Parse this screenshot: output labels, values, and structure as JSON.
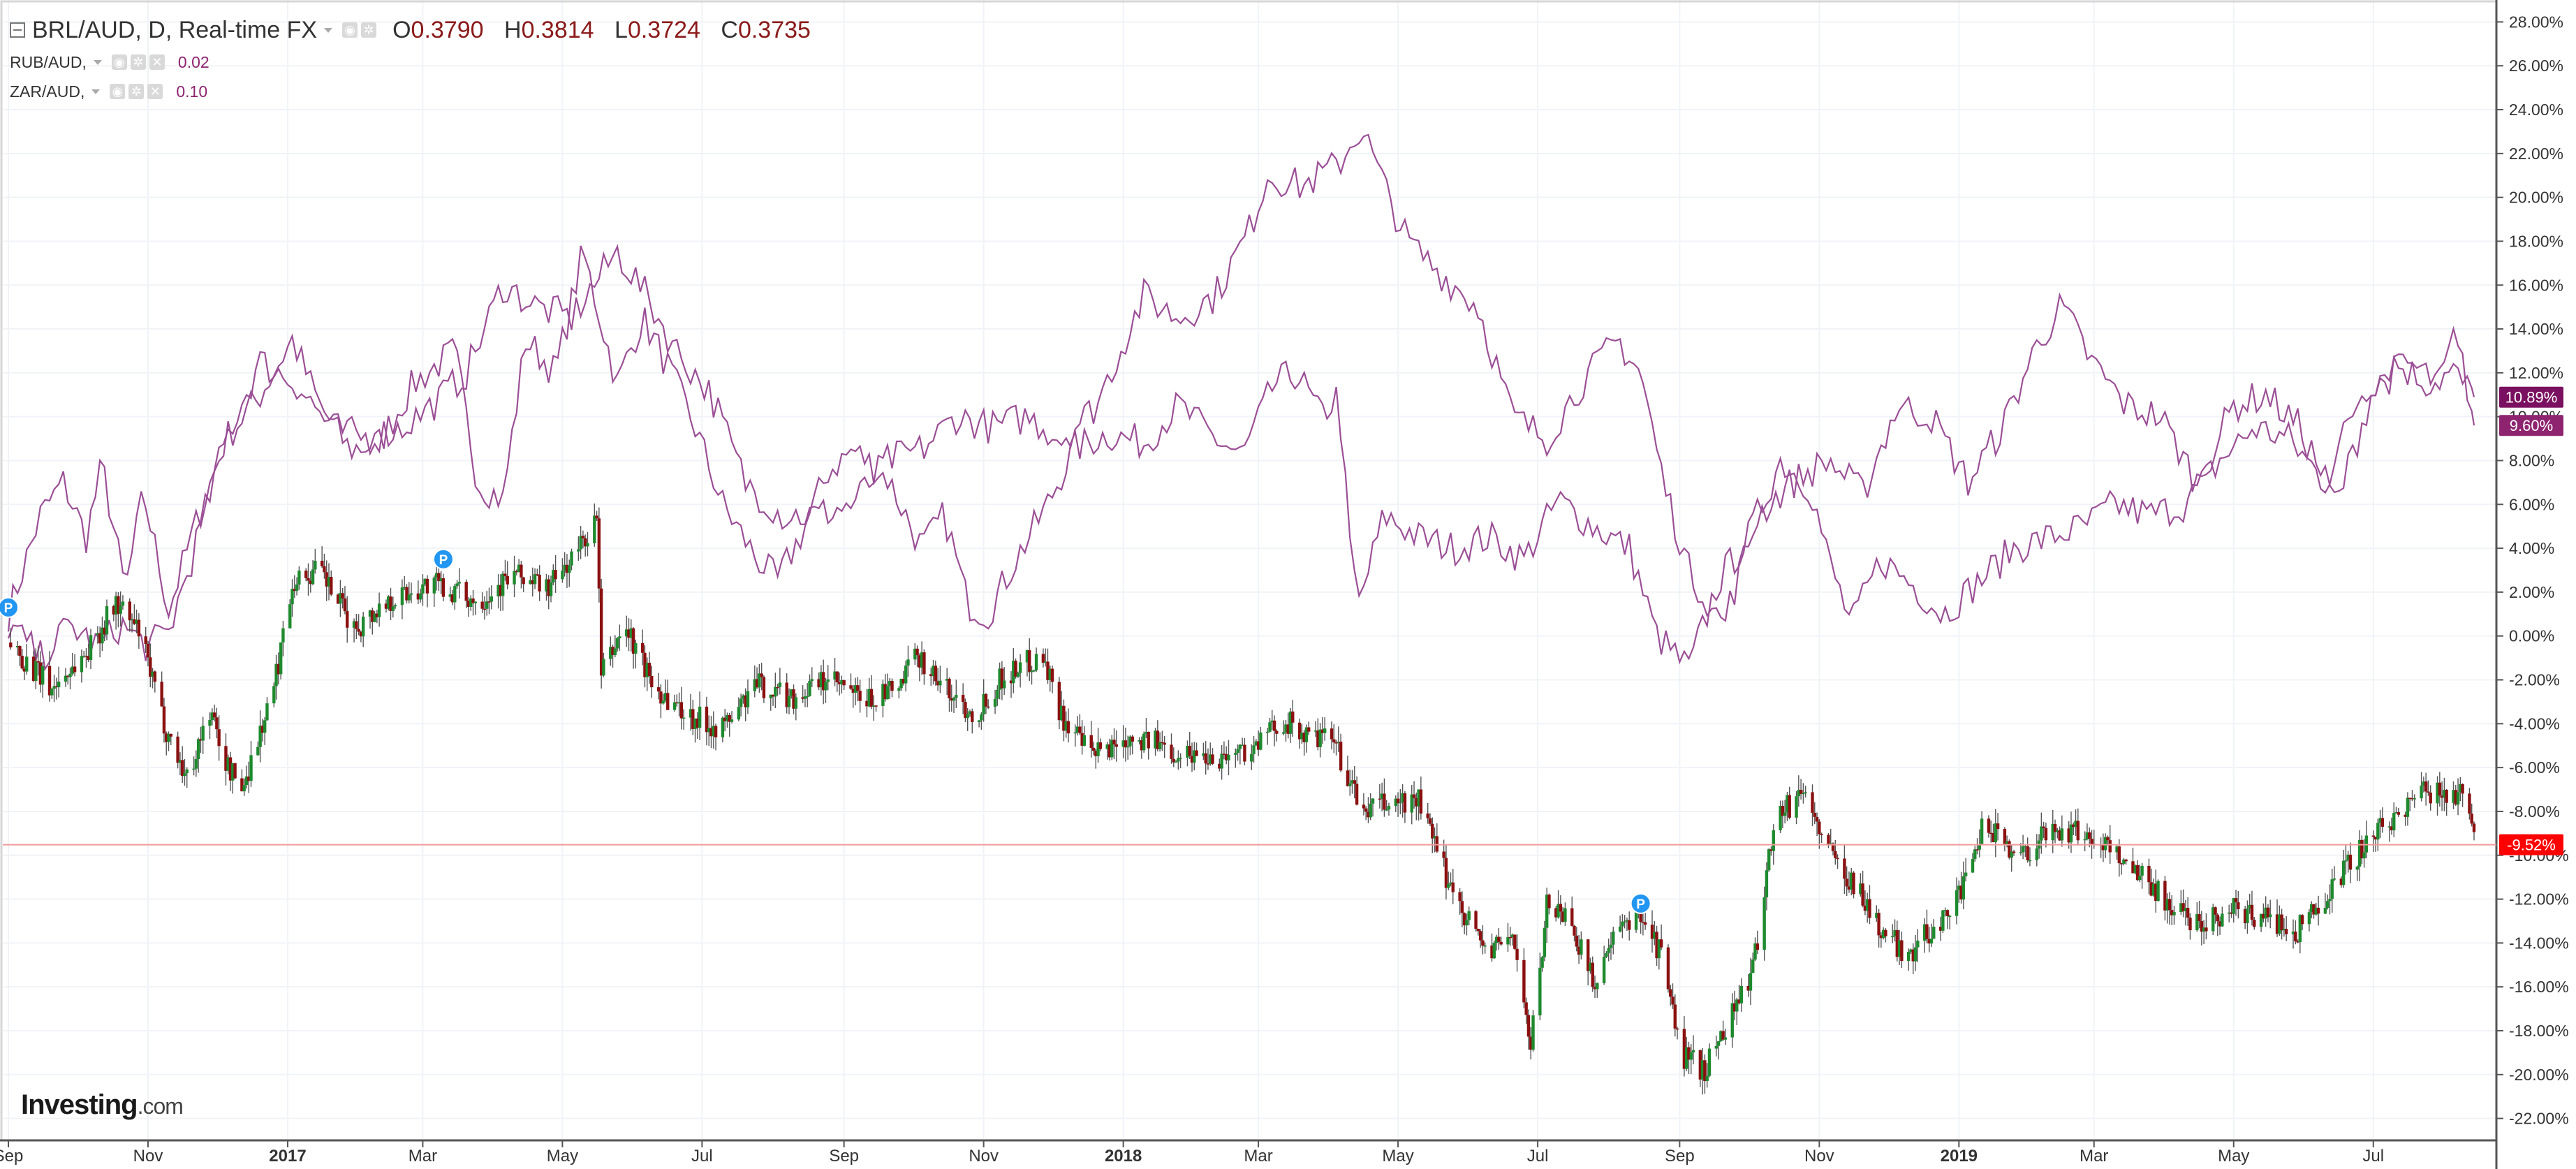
{
  "header": {
    "symbol": "BRL/AUD, D, Real-time FX",
    "ohlc": [
      {
        "k": "O",
        "v": "0.3790"
      },
      {
        "k": "H",
        "v": "0.3814"
      },
      {
        "k": "L",
        "v": "0.3724"
      },
      {
        "k": "C",
        "v": "0.3735"
      }
    ]
  },
  "comparisons": [
    {
      "name": "RUB/AUD,",
      "value": "0.02"
    },
    {
      "name": "ZAR/AUD,",
      "value": "0.10"
    }
  ],
  "logo": {
    "brand": "Investing",
    "suffix": ".com"
  },
  "colors": {
    "up": "#1e8a2e",
    "down": "#8b1010",
    "compare": "#9b4f96",
    "last_price": "#ff0000",
    "rub_badge": "#7a1060",
    "zar_badge": "#8e2470"
  },
  "chart_data": {
    "type": "line",
    "x_tick_labels": [
      "Sep",
      "Nov",
      "2017",
      "Mar",
      "May",
      "Jul",
      "Sep",
      "Nov",
      "2018",
      "Mar",
      "May",
      "Jul",
      "Sep",
      "Nov",
      "2019",
      "Mar",
      "May",
      "Jul"
    ],
    "x_range": [
      "2016-09-01",
      "2019-08-14"
    ],
    "y_tick_labels": [
      "28.00%",
      "26.00%",
      "24.00%",
      "22.00%",
      "20.00%",
      "18.00%",
      "16.00%",
      "14.00%",
      "12.00%",
      "10.00%",
      "8.00%",
      "6.00%",
      "4.00%",
      "2.00%",
      "0.00%",
      "-2.00%",
      "-4.00%",
      "-6.00%",
      "-8.00%",
      "-10.00%",
      "-12.00%",
      "-14.00%",
      "-16.00%",
      "-18.00%",
      "-20.00%",
      "-22.00%"
    ],
    "ylim": [
      -23,
      29
    ],
    "last_value_labels": [
      {
        "series": "RUB/AUD,",
        "label": "10.89%",
        "value": 10.89
      },
      {
        "series": "ZAR/AUD,",
        "label": "9.60%",
        "value": 9.6
      },
      {
        "series": "BRL/AUD, D, Real-time FX",
        "label": "-9.52%",
        "value": -9.52
      }
    ],
    "markers": [
      {
        "label": "P",
        "date": "2016-09-01",
        "value": 1.3
      },
      {
        "label": "P",
        "date": "2017-03-10",
        "value": 3.5
      },
      {
        "label": "P",
        "date": "2018-08-15",
        "value": -12.2
      }
    ],
    "series": [
      {
        "name": "BRL/AUD, D, Real-time FX",
        "style": "candlestick",
        "anchors": [
          [
            "2016-09-01",
            -0.3
          ],
          [
            "2016-09-20",
            -2.4
          ],
          [
            "2016-10-05",
            -0.8
          ],
          [
            "2016-10-18",
            1.5
          ],
          [
            "2016-10-28",
            0.2
          ],
          [
            "2016-11-08",
            -4.0
          ],
          [
            "2016-11-18",
            -6.5
          ],
          [
            "2016-11-28",
            -3.4
          ],
          [
            "2016-12-05",
            -5.8
          ],
          [
            "2016-12-12",
            -7.0
          ],
          [
            "2016-12-26",
            -2.4
          ],
          [
            "2017-01-03",
            2.5
          ],
          [
            "2017-01-15",
            3.0
          ],
          [
            "2017-01-30",
            0.3
          ],
          [
            "2017-02-15",
            1.7
          ],
          [
            "2017-03-05",
            2.4
          ],
          [
            "2017-03-25",
            1.6
          ],
          [
            "2017-04-10",
            2.8
          ],
          [
            "2017-04-25",
            2.2
          ],
          [
            "2017-05-05",
            3.5
          ],
          [
            "2017-05-16",
            5.3
          ],
          [
            "2017-05-18",
            -1.8
          ],
          [
            "2017-05-28",
            0.5
          ],
          [
            "2017-06-10",
            -2.3
          ],
          [
            "2017-06-25",
            -3.6
          ],
          [
            "2017-07-10",
            -4.2
          ],
          [
            "2017-07-25",
            -2.2
          ],
          [
            "2017-08-10",
            -2.8
          ],
          [
            "2017-08-25",
            -2.0
          ],
          [
            "2017-09-10",
            -3.0
          ],
          [
            "2017-09-25",
            -2.4
          ],
          [
            "2017-10-03",
            -0.8
          ],
          [
            "2017-10-15",
            -2.4
          ],
          [
            "2017-10-28",
            -3.6
          ],
          [
            "2017-11-08",
            -2.0
          ],
          [
            "2017-11-18",
            -1.3
          ],
          [
            "2017-11-27",
            -0.9
          ],
          [
            "2017-12-05",
            -3.6
          ],
          [
            "2017-12-18",
            -5.5
          ],
          [
            "2018-01-05",
            -4.5
          ],
          [
            "2018-01-25",
            -5.3
          ],
          [
            "2018-02-12",
            -5.5
          ],
          [
            "2018-02-28",
            -5.0
          ],
          [
            "2018-03-12",
            -3.8
          ],
          [
            "2018-03-22",
            -4.6
          ],
          [
            "2018-04-03",
            -4.8
          ],
          [
            "2018-04-15",
            -8.0
          ],
          [
            "2018-04-25",
            -7.7
          ],
          [
            "2018-05-10",
            -7.5
          ],
          [
            "2018-05-20",
            -10.5
          ],
          [
            "2018-05-30",
            -12.6
          ],
          [
            "2018-06-10",
            -14.5
          ],
          [
            "2018-06-20",
            -13.5
          ],
          [
            "2018-06-28",
            -18.8
          ],
          [
            "2018-07-05",
            -12.2
          ],
          [
            "2018-07-15",
            -12.8
          ],
          [
            "2018-07-25",
            -15.8
          ],
          [
            "2018-08-05",
            -13.6
          ],
          [
            "2018-08-15",
            -12.5
          ],
          [
            "2018-08-25",
            -14.8
          ],
          [
            "2018-09-01",
            -19.0
          ],
          [
            "2018-09-12",
            -19.8
          ],
          [
            "2018-09-22",
            -17.5
          ],
          [
            "2018-10-03",
            -15.3
          ],
          [
            "2018-10-12",
            -8.5
          ],
          [
            "2018-10-25",
            -7.0
          ],
          [
            "2018-11-05",
            -9.8
          ],
          [
            "2018-11-18",
            -11.5
          ],
          [
            "2018-11-28",
            -13.5
          ],
          [
            "2018-12-10",
            -14.5
          ],
          [
            "2018-12-25",
            -12.8
          ],
          [
            "2019-01-05",
            -11.2
          ],
          [
            "2019-01-12",
            -8.5
          ],
          [
            "2019-01-28",
            -10.0
          ],
          [
            "2019-02-10",
            -8.8
          ],
          [
            "2019-02-25",
            -9.0
          ],
          [
            "2019-03-10",
            -9.8
          ],
          [
            "2019-03-25",
            -11.2
          ],
          [
            "2019-04-05",
            -12.5
          ],
          [
            "2019-04-15",
            -13.0
          ],
          [
            "2019-05-01",
            -12.5
          ],
          [
            "2019-05-15",
            -12.8
          ],
          [
            "2019-05-28",
            -13.5
          ],
          [
            "2019-06-10",
            -11.8
          ],
          [
            "2019-06-25",
            -9.8
          ],
          [
            "2019-07-05",
            -8.8
          ],
          [
            "2019-07-20",
            -7.2
          ],
          [
            "2019-08-05",
            -7.0
          ],
          [
            "2019-08-10",
            -7.5
          ],
          [
            "2019-08-14",
            -9.52
          ]
        ]
      },
      {
        "name": "RUB/AUD,",
        "style": "line",
        "anchors": [
          [
            "2016-09-01",
            1.0
          ],
          [
            "2016-09-15",
            5.5
          ],
          [
            "2016-09-25",
            7.0
          ],
          [
            "2016-10-05",
            4.5
          ],
          [
            "2016-10-12",
            7.8
          ],
          [
            "2016-10-22",
            2.0
          ],
          [
            "2016-10-30",
            6.5
          ],
          [
            "2016-11-10",
            1.2
          ],
          [
            "2016-11-20",
            4.5
          ],
          [
            "2016-12-05",
            9.0
          ],
          [
            "2016-12-20",
            11.0
          ],
          [
            "2017-01-03",
            13.5
          ],
          [
            "2017-01-15",
            10.5
          ],
          [
            "2017-01-28",
            8.5
          ],
          [
            "2017-02-10",
            8.8
          ],
          [
            "2017-02-25",
            11.5
          ],
          [
            "2017-03-15",
            13.0
          ],
          [
            "2017-03-25",
            7.0
          ],
          [
            "2017-04-05",
            6.2
          ],
          [
            "2017-04-15",
            13.5
          ],
          [
            "2017-04-28",
            12.0
          ],
          [
            "2017-05-10",
            17.5
          ],
          [
            "2017-05-25",
            11.5
          ],
          [
            "2017-06-05",
            14.5
          ],
          [
            "2017-06-15",
            12.5
          ],
          [
            "2017-06-28",
            9.5
          ],
          [
            "2017-07-10",
            6.0
          ],
          [
            "2017-07-25",
            3.5
          ],
          [
            "2017-08-03",
            2.5
          ],
          [
            "2017-08-15",
            5.0
          ],
          [
            "2017-08-25",
            7.5
          ],
          [
            "2017-09-05",
            8.5
          ],
          [
            "2017-09-20",
            7.2
          ],
          [
            "2017-10-05",
            4.0
          ],
          [
            "2017-10-15",
            5.5
          ],
          [
            "2017-10-25",
            1.5
          ],
          [
            "2017-11-03",
            1.0
          ],
          [
            "2017-11-15",
            3.5
          ],
          [
            "2017-11-28",
            5.8
          ],
          [
            "2017-12-10",
            8.5
          ],
          [
            "2017-12-25",
            9.2
          ],
          [
            "2018-01-10",
            8.8
          ],
          [
            "2018-01-25",
            10.5
          ],
          [
            "2018-02-10",
            9.0
          ],
          [
            "2018-02-22",
            8.2
          ],
          [
            "2018-03-08",
            11.5
          ],
          [
            "2018-03-18",
            12.0
          ],
          [
            "2018-03-28",
            10.0
          ],
          [
            "2018-04-05",
            11.0
          ],
          [
            "2018-04-10",
            4.0
          ],
          [
            "2018-04-14",
            1.5
          ],
          [
            "2018-04-25",
            5.5
          ],
          [
            "2018-05-10",
            4.5
          ],
          [
            "2018-05-25",
            4.0
          ],
          [
            "2018-06-10",
            4.5
          ],
          [
            "2018-06-25",
            3.5
          ],
          [
            "2018-07-10",
            6.2
          ],
          [
            "2018-07-25",
            5.0
          ],
          [
            "2018-08-10",
            4.0
          ],
          [
            "2018-08-22",
            0.0
          ],
          [
            "2018-09-05",
            -1.5
          ],
          [
            "2018-09-18",
            2.5
          ],
          [
            "2018-10-01",
            4.5
          ],
          [
            "2018-10-15",
            8.0
          ],
          [
            "2018-10-28",
            6.8
          ],
          [
            "2018-11-05",
            3.5
          ],
          [
            "2018-11-15",
            0.5
          ],
          [
            "2018-11-28",
            3.5
          ],
          [
            "2018-12-10",
            2.5
          ],
          [
            "2018-12-25",
            1.0
          ],
          [
            "2019-01-10",
            2.5
          ],
          [
            "2019-01-25",
            4.0
          ],
          [
            "2019-02-10",
            4.5
          ],
          [
            "2019-02-25",
            5.0
          ],
          [
            "2019-03-10",
            6.0
          ],
          [
            "2019-03-25",
            5.5
          ],
          [
            "2019-04-10",
            6.0
          ],
          [
            "2019-04-25",
            8.0
          ],
          [
            "2019-05-10",
            9.5
          ],
          [
            "2019-05-25",
            9.0
          ],
          [
            "2019-06-10",
            7.0
          ],
          [
            "2019-06-25",
            11.0
          ],
          [
            "2019-07-10",
            12.5
          ],
          [
            "2019-07-25",
            11.5
          ],
          [
            "2019-08-05",
            12.0
          ],
          [
            "2019-08-14",
            10.89
          ]
        ]
      },
      {
        "name": "ZAR/AUD,",
        "style": "line",
        "anchors": [
          [
            "2016-09-01",
            0.5
          ],
          [
            "2016-09-15",
            -1.0
          ],
          [
            "2016-09-28",
            0.5
          ],
          [
            "2016-10-10",
            -0.5
          ],
          [
            "2016-10-20",
            0.5
          ],
          [
            "2016-11-01",
            -0.5
          ],
          [
            "2016-11-10",
            0.2
          ],
          [
            "2016-11-20",
            3.5
          ],
          [
            "2016-12-05",
            9.0
          ],
          [
            "2016-12-20",
            12.5
          ],
          [
            "2017-01-05",
            11.5
          ],
          [
            "2017-01-20",
            9.5
          ],
          [
            "2017-02-05",
            9.0
          ],
          [
            "2017-02-20",
            9.5
          ],
          [
            "2017-03-05",
            10.5
          ],
          [
            "2017-03-20",
            12.0
          ],
          [
            "2017-04-05",
            16.0
          ],
          [
            "2017-04-20",
            15.0
          ],
          [
            "2017-05-05",
            14.5
          ],
          [
            "2017-05-18",
            16.5
          ],
          [
            "2017-05-25",
            17.5
          ],
          [
            "2017-06-05",
            15.8
          ],
          [
            "2017-06-20",
            13.0
          ],
          [
            "2017-07-05",
            11.0
          ],
          [
            "2017-07-20",
            7.0
          ],
          [
            "2017-08-05",
            5.5
          ],
          [
            "2017-08-20",
            5.5
          ],
          [
            "2017-09-05",
            6.0
          ],
          [
            "2017-09-20",
            8.0
          ],
          [
            "2017-10-05",
            8.5
          ],
          [
            "2017-10-20",
            10.0
          ],
          [
            "2017-11-05",
            9.5
          ],
          [
            "2017-11-20",
            10.0
          ],
          [
            "2017-12-05",
            9.0
          ],
          [
            "2017-12-20",
            10.5
          ],
          [
            "2018-01-10",
            15.5
          ],
          [
            "2018-01-25",
            14.5
          ],
          [
            "2018-02-10",
            15.5
          ],
          [
            "2018-02-25",
            18.5
          ],
          [
            "2018-03-05",
            21.0
          ],
          [
            "2018-03-20",
            20.5
          ],
          [
            "2018-04-05",
            21.5
          ],
          [
            "2018-04-15",
            23.2
          ],
          [
            "2018-04-25",
            20.5
          ],
          [
            "2018-05-05",
            18.0
          ],
          [
            "2018-05-20",
            16.5
          ],
          [
            "2018-06-05",
            15.0
          ],
          [
            "2018-06-20",
            10.0
          ],
          [
            "2018-07-05",
            9.0
          ],
          [
            "2018-07-20",
            11.5
          ],
          [
            "2018-08-05",
            13.5
          ],
          [
            "2018-08-15",
            12.0
          ],
          [
            "2018-08-25",
            7.0
          ],
          [
            "2018-09-05",
            3.0
          ],
          [
            "2018-09-20",
            0.5
          ],
          [
            "2018-10-05",
            5.5
          ],
          [
            "2018-10-20",
            7.0
          ],
          [
            "2018-11-05",
            8.0
          ],
          [
            "2018-11-20",
            6.5
          ],
          [
            "2018-12-05",
            10.5
          ],
          [
            "2018-12-20",
            10.0
          ],
          [
            "2019-01-05",
            7.0
          ],
          [
            "2019-01-20",
            9.5
          ],
          [
            "2019-02-05",
            13.5
          ],
          [
            "2019-02-15",
            15.0
          ],
          [
            "2019-02-28",
            12.5
          ],
          [
            "2019-03-15",
            10.5
          ],
          [
            "2019-03-30",
            10.0
          ],
          [
            "2019-04-15",
            7.0
          ],
          [
            "2019-05-01",
            10.5
          ],
          [
            "2019-05-15",
            11.0
          ],
          [
            "2019-05-30",
            9.5
          ],
          [
            "2019-06-15",
            6.0
          ],
          [
            "2019-06-30",
            11.0
          ],
          [
            "2019-07-15",
            12.5
          ],
          [
            "2019-07-30",
            11.5
          ],
          [
            "2019-08-05",
            13.5
          ],
          [
            "2019-08-10",
            12.0
          ],
          [
            "2019-08-14",
            9.6
          ]
        ]
      }
    ]
  }
}
